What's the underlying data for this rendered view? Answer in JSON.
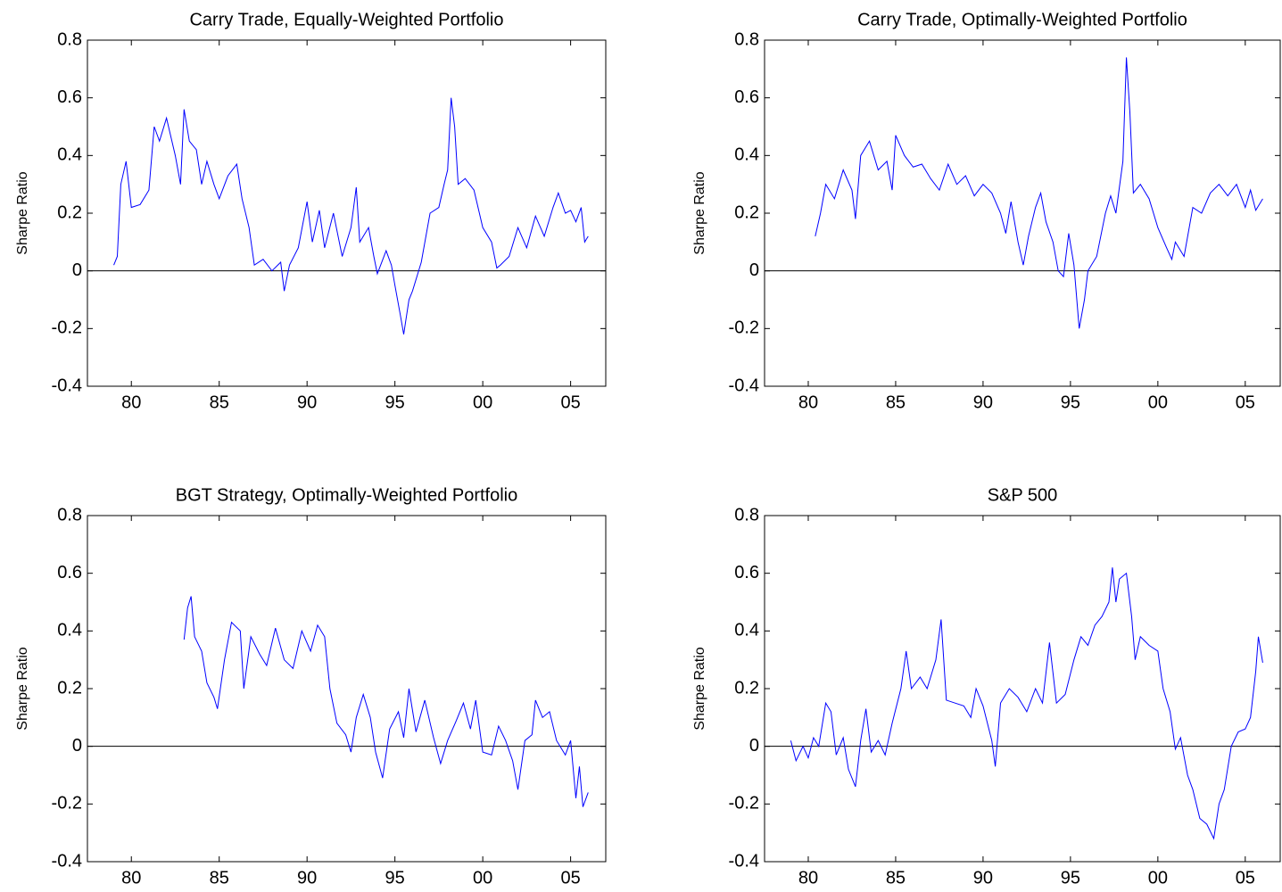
{
  "chart_data": [
    {
      "type": "line",
      "title": "Carry Trade, Equally-Weighted Portfolio",
      "ylabel": "Sharpe Ratio",
      "color": "#0000ff",
      "xlim": [
        1977.5,
        2007
      ],
      "ylim": [
        -0.4,
        0.8
      ],
      "xticks": [
        {
          "value": 1980,
          "label": "80"
        },
        {
          "value": 1985,
          "label": "85"
        },
        {
          "value": 1990,
          "label": "90"
        },
        {
          "value": 1995,
          "label": "95"
        },
        {
          "value": 2000,
          "label": "00"
        },
        {
          "value": 2005,
          "label": "05"
        }
      ],
      "yticks": [
        -0.4,
        -0.2,
        0,
        0.2,
        0.4,
        0.6,
        0.8
      ],
      "x": [
        1979,
        1979.2,
        1979.4,
        1979.7,
        1980,
        1980.5,
        1981,
        1981.3,
        1981.6,
        1982,
        1982.5,
        1982.8,
        1983,
        1983.3,
        1983.7,
        1984,
        1984.3,
        1984.7,
        1985,
        1985.5,
        1986,
        1986.3,
        1986.7,
        1987,
        1987.5,
        1988,
        1988.5,
        1988.7,
        1989,
        1989.5,
        1990,
        1990.3,
        1990.7,
        1991,
        1991.5,
        1992,
        1992.5,
        1992.8,
        1993,
        1993.5,
        1993.8,
        1994,
        1994.5,
        1994.8,
        1995,
        1995.3,
        1995.5,
        1995.8,
        1996,
        1996.5,
        1997,
        1997.5,
        1997.8,
        1998,
        1998.2,
        1998.4,
        1998.6,
        1999,
        1999.5,
        2000,
        2000.5,
        2000.8,
        2001,
        2001.5,
        2002,
        2002.5,
        2003,
        2003.5,
        2004,
        2004.3,
        2004.7,
        2005,
        2005.3,
        2005.6,
        2005.8,
        2006
      ],
      "values": [
        0.02,
        0.05,
        0.3,
        0.38,
        0.22,
        0.23,
        0.28,
        0.5,
        0.45,
        0.53,
        0.4,
        0.3,
        0.56,
        0.45,
        0.42,
        0.3,
        0.38,
        0.3,
        0.25,
        0.33,
        0.37,
        0.25,
        0.15,
        0.02,
        0.04,
        0.0,
        0.03,
        -0.07,
        0.02,
        0.08,
        0.24,
        0.1,
        0.21,
        0.08,
        0.2,
        0.05,
        0.15,
        0.29,
        0.1,
        0.15,
        0.05,
        -0.01,
        0.07,
        0.02,
        -0.05,
        -0.15,
        -0.22,
        -0.1,
        -0.07,
        0.03,
        0.2,
        0.22,
        0.3,
        0.35,
        0.6,
        0.5,
        0.3,
        0.32,
        0.28,
        0.15,
        0.1,
        0.01,
        0.02,
        0.05,
        0.15,
        0.08,
        0.19,
        0.12,
        0.22,
        0.27,
        0.2,
        0.21,
        0.17,
        0.22,
        0.1,
        0.12
      ]
    },
    {
      "type": "line",
      "title": "Carry Trade, Optimally-Weighted Portfolio",
      "ylabel": "Sharpe Ratio",
      "color": "#0000ff",
      "xlim": [
        1977.5,
        2007
      ],
      "ylim": [
        -0.4,
        0.8
      ],
      "xticks": [
        {
          "value": 1980,
          "label": "80"
        },
        {
          "value": 1985,
          "label": "85"
        },
        {
          "value": 1990,
          "label": "90"
        },
        {
          "value": 1995,
          "label": "95"
        },
        {
          "value": 2000,
          "label": "00"
        },
        {
          "value": 2005,
          "label": "05"
        }
      ],
      "yticks": [
        -0.4,
        -0.2,
        0,
        0.2,
        0.4,
        0.6,
        0.8
      ],
      "x": [
        1980.4,
        1980.7,
        1981,
        1981.5,
        1982,
        1982.5,
        1982.7,
        1983,
        1983.5,
        1984,
        1984.5,
        1984.8,
        1985,
        1985.5,
        1986,
        1986.5,
        1987,
        1987.5,
        1988,
        1988.5,
        1989,
        1989.5,
        1990,
        1990.5,
        1991,
        1991.3,
        1991.6,
        1992,
        1992.3,
        1992.6,
        1993,
        1993.3,
        1993.6,
        1994,
        1994.3,
        1994.6,
        1994.9,
        1995.2,
        1995.5,
        1995.8,
        1996,
        1996.5,
        1997,
        1997.3,
        1997.6,
        1998,
        1998.2,
        1998.4,
        1998.6,
        1999,
        1999.5,
        2000,
        2000.5,
        2000.8,
        2001,
        2001.5,
        2002,
        2002.5,
        2003,
        2003.5,
        2004,
        2004.5,
        2005,
        2005.3,
        2005.6,
        2006
      ],
      "values": [
        0.12,
        0.2,
        0.3,
        0.25,
        0.35,
        0.28,
        0.18,
        0.4,
        0.45,
        0.35,
        0.38,
        0.28,
        0.47,
        0.4,
        0.36,
        0.37,
        0.32,
        0.28,
        0.37,
        0.3,
        0.33,
        0.26,
        0.3,
        0.27,
        0.2,
        0.13,
        0.24,
        0.1,
        0.02,
        0.12,
        0.22,
        0.27,
        0.17,
        0.1,
        0.0,
        -0.02,
        0.13,
        0.02,
        -0.2,
        -0.1,
        0.0,
        0.05,
        0.2,
        0.26,
        0.2,
        0.38,
        0.74,
        0.55,
        0.27,
        0.3,
        0.25,
        0.15,
        0.08,
        0.04,
        0.1,
        0.05,
        0.22,
        0.2,
        0.27,
        0.3,
        0.26,
        0.3,
        0.22,
        0.28,
        0.21,
        0.25
      ]
    },
    {
      "type": "line",
      "title": "BGT Strategy, Optimally-Weighted Portfolio",
      "ylabel": "Sharpe Ratio",
      "color": "#0000ff",
      "xlim": [
        1977.5,
        2007
      ],
      "ylim": [
        -0.4,
        0.8
      ],
      "xticks": [
        {
          "value": 1980,
          "label": "80"
        },
        {
          "value": 1985,
          "label": "85"
        },
        {
          "value": 1990,
          "label": "90"
        },
        {
          "value": 1995,
          "label": "95"
        },
        {
          "value": 2000,
          "label": "00"
        },
        {
          "value": 2005,
          "label": "05"
        }
      ],
      "yticks": [
        -0.4,
        -0.2,
        0,
        0.2,
        0.4,
        0.6,
        0.8
      ],
      "x": [
        1983,
        1983.2,
        1983.4,
        1983.6,
        1984,
        1984.3,
        1984.7,
        1984.9,
        1985.3,
        1985.7,
        1986.2,
        1986.4,
        1986.8,
        1987.3,
        1987.7,
        1988.2,
        1988.7,
        1989.2,
        1989.7,
        1990.2,
        1990.6,
        1991,
        1991.3,
        1991.7,
        1992.2,
        1992.5,
        1992.8,
        1993.2,
        1993.6,
        1993.9,
        1994.3,
        1994.7,
        1995.2,
        1995.5,
        1995.8,
        1996.2,
        1996.7,
        1997.2,
        1997.6,
        1998,
        1998.5,
        1998.9,
        1999.3,
        1999.6,
        2000,
        2000.5,
        2000.9,
        2001.3,
        2001.7,
        2002,
        2002.4,
        2002.8,
        2003,
        2003.4,
        2003.8,
        2004.2,
        2004.7,
        2005,
        2005.3,
        2005.5,
        2005.7,
        2006
      ],
      "values": [
        0.37,
        0.48,
        0.52,
        0.38,
        0.33,
        0.22,
        0.17,
        0.13,
        0.3,
        0.43,
        0.4,
        0.2,
        0.38,
        0.32,
        0.28,
        0.41,
        0.3,
        0.27,
        0.4,
        0.33,
        0.42,
        0.38,
        0.2,
        0.08,
        0.04,
        -0.02,
        0.1,
        0.18,
        0.1,
        -0.02,
        -0.11,
        0.06,
        0.12,
        0.03,
        0.2,
        0.05,
        0.16,
        0.03,
        -0.06,
        0.02,
        0.09,
        0.15,
        0.06,
        0.16,
        -0.02,
        -0.03,
        0.07,
        0.02,
        -0.05,
        -0.15,
        0.02,
        0.04,
        0.16,
        0.1,
        0.12,
        0.02,
        -0.03,
        0.02,
        -0.18,
        -0.07,
        -0.21,
        -0.16
      ]
    },
    {
      "type": "line",
      "title": "S&P 500",
      "ylabel": "Sharpe Ratio",
      "color": "#0000ff",
      "xlim": [
        1977.5,
        2007
      ],
      "ylim": [
        -0.4,
        0.8
      ],
      "xticks": [
        {
          "value": 1980,
          "label": "80"
        },
        {
          "value": 1985,
          "label": "85"
        },
        {
          "value": 1990,
          "label": "90"
        },
        {
          "value": 1995,
          "label": "95"
        },
        {
          "value": 2000,
          "label": "00"
        },
        {
          "value": 2005,
          "label": "05"
        }
      ],
      "yticks": [
        -0.4,
        -0.2,
        0,
        0.2,
        0.4,
        0.6,
        0.8
      ],
      "x": [
        1979,
        1979.3,
        1979.7,
        1980,
        1980.3,
        1980.6,
        1981,
        1981.3,
        1981.6,
        1982,
        1982.3,
        1982.7,
        1983,
        1983.3,
        1983.6,
        1984,
        1984.4,
        1984.8,
        1985.3,
        1985.6,
        1985.9,
        1986.4,
        1986.8,
        1987.3,
        1987.6,
        1987.9,
        1988.4,
        1988.9,
        1989.3,
        1989.6,
        1990,
        1990.5,
        1990.7,
        1991,
        1991.5,
        1992,
        1992.5,
        1993,
        1993.4,
        1993.8,
        1994.2,
        1994.7,
        1995.2,
        1995.6,
        1996,
        1996.4,
        1996.8,
        1997.2,
        1997.4,
        1997.6,
        1997.8,
        1998.2,
        1998.5,
        1998.7,
        1999,
        1999.5,
        2000,
        2000.3,
        2000.7,
        2001,
        2001.3,
        2001.7,
        2002,
        2002.4,
        2002.8,
        2003.2,
        2003.5,
        2003.8,
        2004.2,
        2004.6,
        2005,
        2005.3,
        2005.6,
        2005.75,
        2006
      ],
      "values": [
        0.02,
        -0.05,
        0.0,
        -0.04,
        0.03,
        0.0,
        0.15,
        0.12,
        -0.03,
        0.03,
        -0.08,
        -0.14,
        0.02,
        0.13,
        -0.02,
        0.02,
        -0.03,
        0.08,
        0.2,
        0.33,
        0.2,
        0.24,
        0.2,
        0.3,
        0.44,
        0.16,
        0.15,
        0.14,
        0.1,
        0.2,
        0.14,
        0.02,
        -0.07,
        0.15,
        0.2,
        0.17,
        0.12,
        0.2,
        0.15,
        0.36,
        0.15,
        0.18,
        0.3,
        0.38,
        0.35,
        0.42,
        0.45,
        0.5,
        0.62,
        0.5,
        0.58,
        0.6,
        0.45,
        0.3,
        0.38,
        0.35,
        0.33,
        0.2,
        0.12,
        -0.01,
        0.03,
        -0.1,
        -0.15,
        -0.25,
        -0.27,
        -0.32,
        -0.2,
        -0.15,
        0.0,
        0.05,
        0.06,
        0.1,
        0.26,
        0.38,
        0.29
      ]
    }
  ]
}
